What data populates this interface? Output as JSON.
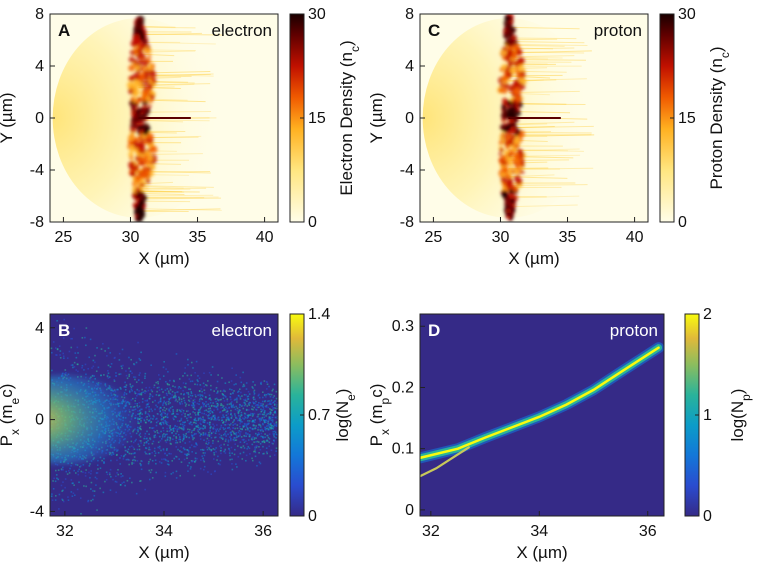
{
  "colors": {
    "hot_low": "#fffde8",
    "hot_high": "#1a0000",
    "parula_low": "#352a87",
    "parula_high": "#f9fb0e"
  },
  "chart_data": [
    {
      "panel": "A",
      "type": "heatmap",
      "tag": "electron",
      "xlabel": "X (µm)",
      "ylabel": "Y (µm)",
      "xlim": [
        24,
        41
      ],
      "ylim": [
        -8,
        8
      ],
      "xticks": [
        "25",
        "30",
        "35",
        "40"
      ],
      "yticks": [
        "8",
        "4",
        "0",
        "-4",
        "-8"
      ],
      "colorbar": {
        "label": "Electron Density (n",
        "label_sub": "c",
        "label_tail": ")",
        "range": [
          0,
          30
        ],
        "ticks": [
          "30",
          "15",
          "0"
        ],
        "colormap": "hot"
      },
      "features": {
        "dense_front_x": 30.6,
        "jet_end_x": 34.5,
        "plume_end_x": 37
      }
    },
    {
      "panel": "C",
      "type": "heatmap",
      "tag": "proton",
      "xlabel": "X (µm)",
      "ylabel": "Y (µm)",
      "xlim": [
        24,
        41
      ],
      "ylim": [
        -8,
        8
      ],
      "xticks": [
        "25",
        "30",
        "35",
        "40"
      ],
      "yticks": [
        "8",
        "4",
        "0",
        "-4",
        "-8"
      ],
      "colorbar": {
        "label": "Proton Density (n",
        "label_sub": "c",
        "label_tail": ")",
        "range": [
          0,
          30
        ],
        "ticks": [
          "30",
          "15",
          "0"
        ],
        "colormap": "hot"
      },
      "features": {
        "dense_front_x": 30.6,
        "jet_end_x": 34.5,
        "plume_end_x": 37
      }
    },
    {
      "panel": "B",
      "type": "heatmap",
      "tag": "electron",
      "xlabel": "X (µm)",
      "ylabel": "P",
      "ylabel_sub": "x",
      "ylabel_tail": " (m",
      "ylabel_sub2": "e",
      "ylabel_tail2": "c)",
      "xlim": [
        31.7,
        36.3
      ],
      "ylim": [
        -4.2,
        4.6
      ],
      "xticks": [
        "32",
        "34",
        "36"
      ],
      "yticks": [
        "4",
        "0",
        "-4"
      ],
      "colorbar": {
        "label": "log(N",
        "label_sub": "e",
        "label_tail": ")",
        "range": [
          0,
          1.4
        ],
        "ticks": [
          "1.4",
          "0.7",
          "0"
        ],
        "colormap": "parula"
      }
    },
    {
      "panel": "D",
      "type": "heatmap",
      "tag": "proton",
      "xlabel": "X (µm)",
      "ylabel": "P",
      "ylabel_sub": "x",
      "ylabel_tail": " (m",
      "ylabel_sub2": "p",
      "ylabel_tail2": "c)",
      "xlim": [
        31.8,
        36.3
      ],
      "ylim": [
        -0.01,
        0.32
      ],
      "xticks": [
        "32",
        "34",
        "36"
      ],
      "yticks": [
        "0.3",
        "0.2",
        "0.1",
        "0"
      ],
      "colorbar": {
        "label": "log(N",
        "label_sub": "p",
        "label_tail": ")",
        "range": [
          0,
          2
        ],
        "ticks": [
          "2",
          "1",
          "0"
        ],
        "colormap": "parula"
      },
      "main_band": {
        "x": [
          31.8,
          32.5,
          33.0,
          33.5,
          34.0,
          34.5,
          35.0,
          35.5,
          36.2
        ],
        "y": [
          0.085,
          0.1,
          0.118,
          0.135,
          0.152,
          0.172,
          0.196,
          0.225,
          0.265
        ]
      },
      "lower_branch": {
        "x": [
          31.8,
          32.1,
          32.4,
          32.7
        ],
        "y": [
          0.055,
          0.068,
          0.085,
          0.102
        ]
      }
    }
  ]
}
